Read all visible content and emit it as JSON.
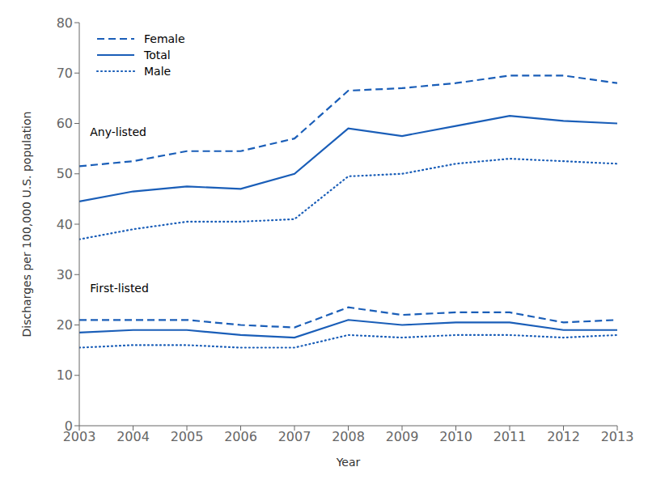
{
  "chart_data": {
    "type": "line",
    "x": [
      2003,
      2004,
      2005,
      2006,
      2007,
      2008,
      2009,
      2010,
      2011,
      2012,
      2013
    ],
    "xlabel": "Year",
    "ylabel": "Discharges per 100,000 U.S. population",
    "xlim": [
      2003,
      2013
    ],
    "xticks": [
      2003,
      2004,
      2005,
      2006,
      2007,
      2008,
      2009,
      2010,
      2011,
      2012,
      2013
    ],
    "ylim": [
      0,
      80
    ],
    "yticks": [
      0,
      10,
      20,
      30,
      40,
      50,
      60,
      70,
      80
    ],
    "grid": false,
    "legend": "upper left",
    "color": "#1a5eb8",
    "series": [
      {
        "name": "Female",
        "line_style": "dashed",
        "values": [
          51.5,
          52.5,
          54.5,
          54.5,
          57.0,
          66.5,
          67.0,
          68.0,
          69.5,
          69.5,
          68.0
        ]
      },
      {
        "name": "Total",
        "line_style": "solid",
        "values": [
          44.5,
          46.5,
          47.5,
          47.0,
          50.0,
          59.0,
          57.5,
          59.5,
          61.5,
          60.5,
          60.0
        ]
      },
      {
        "name": "Male",
        "line_style": "dotted",
        "values": [
          37.0,
          39.0,
          40.5,
          40.5,
          41.0,
          49.5,
          50.0,
          52.0,
          53.0,
          52.5,
          52.0
        ]
      },
      {
        "name": "Female",
        "line_style": "dashed",
        "values": [
          21.0,
          21.0,
          21.0,
          20.0,
          19.5,
          23.5,
          22.0,
          22.5,
          22.5,
          20.5,
          21.0
        ]
      },
      {
        "name": "Total",
        "line_style": "solid",
        "values": [
          18.5,
          19.0,
          19.0,
          18.0,
          17.5,
          21.0,
          20.0,
          20.5,
          20.5,
          19.0,
          19.0
        ]
      },
      {
        "name": "Male",
        "line_style": "dotted",
        "values": [
          15.5,
          16.0,
          16.0,
          15.5,
          15.5,
          18.0,
          17.5,
          18.0,
          18.0,
          17.5,
          18.0
        ]
      }
    ],
    "annotations": [
      {
        "text": "Any-listed",
        "x": 2003.2,
        "y": 57.5
      },
      {
        "text": "First-listed",
        "x": 2003.2,
        "y": 26.5
      }
    ]
  }
}
